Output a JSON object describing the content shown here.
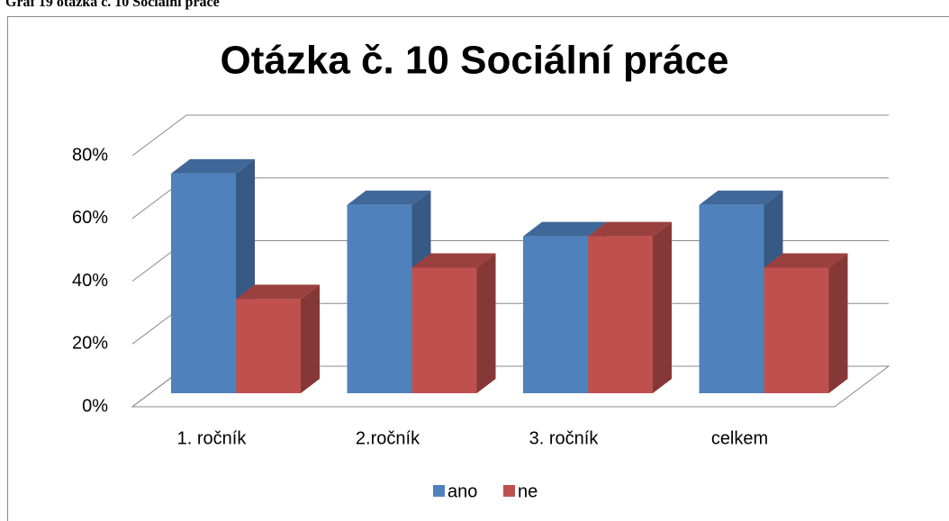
{
  "header": "Graf 19 otázka č. 10 Sociální práce",
  "chart_data": {
    "type": "bar3d",
    "title": "Otázka č. 10 Sociální práce",
    "categories": [
      "1. ročník",
      "2.ročník",
      "3. ročník",
      "celkem"
    ],
    "series": [
      {
        "name": "ano",
        "color": "#4f81bd",
        "values": [
          70,
          60,
          50,
          60
        ]
      },
      {
        "name": "ne",
        "color": "#c0504d",
        "values": [
          30,
          40,
          50,
          40
        ]
      }
    ],
    "ylim": [
      0,
      80
    ],
    "yticks": [
      {
        "value": 0,
        "label": "0%"
      },
      {
        "value": 20,
        "label": "20%"
      },
      {
        "value": 40,
        "label": "40%"
      },
      {
        "value": 60,
        "label": "60%"
      },
      {
        "value": 80,
        "label": "80%"
      }
    ],
    "grid": true,
    "legend": "bottom"
  }
}
